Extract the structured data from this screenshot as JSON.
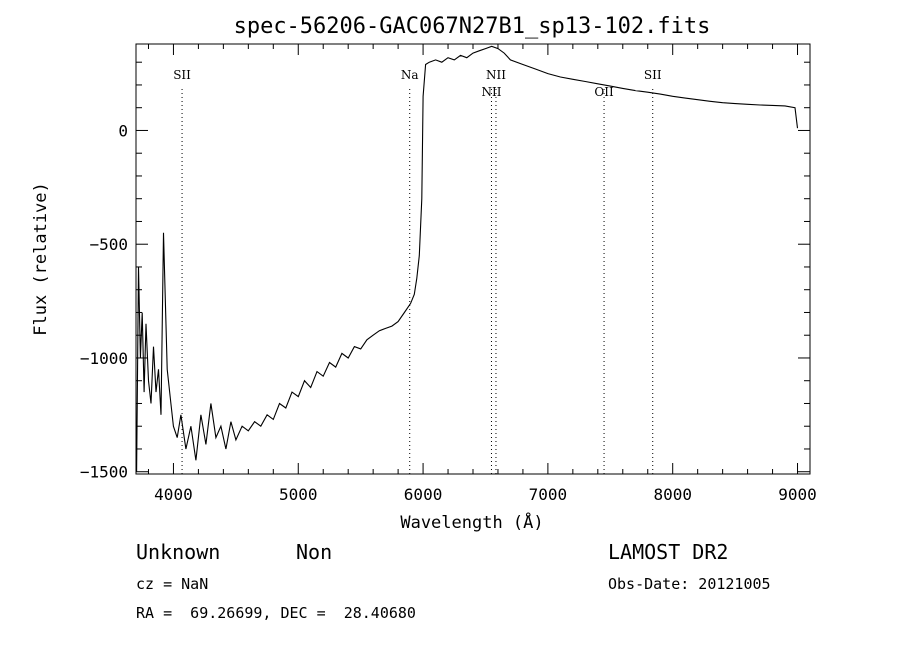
{
  "chart_data": {
    "type": "line",
    "title": "spec-56206-GAC067N27B1_sp13-102.fits",
    "xlabel": "Wavelength (Å)",
    "ylabel": "Flux (relative)",
    "xlim": [
      3700,
      9100
    ],
    "ylim": [
      -1510,
      380
    ],
    "xticks": [
      4000,
      5000,
      6000,
      7000,
      8000,
      9000
    ],
    "xtick_labels": [
      "4000",
      "5000",
      "6000",
      "7000",
      "8000",
      "9000"
    ],
    "yticks": [
      0,
      -500,
      -1000,
      -1500
    ],
    "ytick_labels": [
      "0",
      "−500",
      "−1000",
      "−1500"
    ],
    "grid": false,
    "lines": [
      {
        "label": "SII",
        "x": 4069,
        "label_pos": "top"
      },
      {
        "label": "Na",
        "x": 5893,
        "label_pos": "top"
      },
      {
        "label": "NII",
        "x": 6548,
        "label_pos": "low"
      },
      {
        "label": "NII",
        "x": 6584,
        "label_pos": "high"
      },
      {
        "label": "OII",
        "x": 7450,
        "label_pos": "low"
      },
      {
        "label": "SII",
        "x": 7840,
        "label_pos": "top"
      }
    ],
    "series": [
      {
        "x": [
          3705,
          3720,
          3735,
          3750,
          3765,
          3780,
          3800,
          3820,
          3840,
          3860,
          3880,
          3900,
          3920,
          3950,
          3980,
          4000,
          4030,
          4060,
          4100,
          4140,
          4180,
          4220,
          4260,
          4300,
          4340,
          4380,
          4420,
          4460,
          4500,
          4550,
          4600,
          4650,
          4700,
          4750,
          4800,
          4850,
          4900,
          4950,
          5000,
          5050,
          5100,
          5150,
          5200,
          5250,
          5300,
          5350,
          5400,
          5450,
          5500,
          5550,
          5600,
          5650,
          5700,
          5750,
          5800,
          5850,
          5900,
          5930,
          5950,
          5970,
          5990,
          6000,
          6020,
          6050,
          6100,
          6150,
          6200,
          6250,
          6300,
          6350,
          6400,
          6450,
          6500,
          6550,
          6600,
          6650,
          6700,
          6800,
          6900,
          7000,
          7100,
          7200,
          7300,
          7400,
          7500,
          7600,
          7700,
          7800,
          7900,
          8000,
          8100,
          8200,
          8300,
          8400,
          8500,
          8600,
          8700,
          8800,
          8900,
          8980,
          9000
        ],
        "y": [
          -1500,
          -600,
          -1000,
          -800,
          -1150,
          -850,
          -1100,
          -1200,
          -950,
          -1150,
          -1050,
          -1250,
          -450,
          -1050,
          -1200,
          -1300,
          -1350,
          -1250,
          -1400,
          -1300,
          -1450,
          -1250,
          -1380,
          -1200,
          -1350,
          -1300,
          -1400,
          -1280,
          -1360,
          -1300,
          -1320,
          -1280,
          -1300,
          -1250,
          -1270,
          -1200,
          -1220,
          -1150,
          -1170,
          -1100,
          -1130,
          -1060,
          -1080,
          -1020,
          -1040,
          -980,
          -1000,
          -950,
          -960,
          -920,
          -900,
          -880,
          -870,
          -860,
          -840,
          -800,
          -760,
          -720,
          -650,
          -550,
          -300,
          150,
          290,
          300,
          310,
          300,
          320,
          310,
          330,
          320,
          340,
          350,
          360,
          370,
          360,
          340,
          310,
          290,
          270,
          250,
          235,
          225,
          215,
          205,
          195,
          185,
          175,
          168,
          160,
          150,
          142,
          135,
          128,
          122,
          118,
          115,
          112,
          110,
          108,
          100,
          10
        ]
      }
    ]
  },
  "footer": {
    "class_label": "Unknown",
    "subclass_label": "Non",
    "survey": "LAMOST DR2",
    "cz": "cz = NaN",
    "obs_date": "Obs-Date: 20121005",
    "coords": "RA =  69.26699, DEC =  28.40680"
  }
}
